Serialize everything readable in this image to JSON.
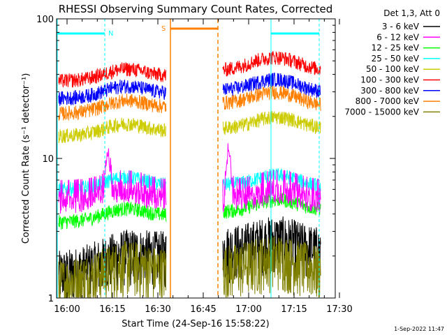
{
  "chart_data": {
    "type": "line",
    "title": "RHESSI Observing Summary Count Rates, Corrected",
    "xlabel": "Start Time (24-Sep-16 15:58:22)",
    "ylabel": "Corrected Count Rate (s⁻¹ detector⁻¹)",
    "y_scale": "log",
    "ylim": [
      1,
      100
    ],
    "xlim_minutes": [
      -1.63,
      36.4
    ],
    "x_ticks": [
      {
        "minute": 0,
        "label": "16:00"
      },
      {
        "minute": 15,
        "label": "16:15"
      },
      {
        "minute": 30,
        "label": "16:30"
      },
      {
        "minute": 45,
        "label": "16:45"
      },
      {
        "minute": 60,
        "label": "17:00"
      },
      {
        "minute": 75,
        "label": "17:15"
      },
      {
        "minute": 90,
        "label": "17:30"
      }
    ],
    "y_ticks": [
      {
        "value": 1,
        "label": "1"
      },
      {
        "value": 10,
        "label": "10"
      },
      {
        "value": 100,
        "label": "100"
      }
    ],
    "legend_header": "Det 1,3, Att 0",
    "legend_position": "right",
    "series": [
      {
        "name": "3 - 6 keV",
        "color": "#000000",
        "baseline": [
          1.5,
          1.8,
          2.2,
          2.3,
          2.2
        ],
        "peak": 2.6
      },
      {
        "name": "6 - 12 keV",
        "color": "#ff00ff",
        "baseline": [
          5.0,
          5.0,
          5.0,
          5.0,
          5.0
        ],
        "peak": 11.5
      },
      {
        "name": "12 - 25 keV",
        "color": "#00ff00",
        "baseline": [
          3.5,
          3.7,
          4.0,
          4.3,
          4.3
        ],
        "peak": 4.5
      },
      {
        "name": "25 - 50 keV",
        "color": "#00ffff",
        "baseline": [
          6.0,
          6.2,
          6.5,
          6.5,
          6.3
        ],
        "peak": 6.8
      },
      {
        "name": "50 - 100 keV",
        "color": "#cccc00",
        "baseline": [
          14.5,
          15.0,
          16.0,
          17.0,
          16.5
        ],
        "peak": 18.0
      },
      {
        "name": "100 - 300 keV",
        "color": "#ff0000",
        "baseline": [
          36.0,
          37.0,
          40.0,
          46.0,
          43.0
        ],
        "peak": 48.0
      },
      {
        "name": "300 - 800 keV",
        "color": "#0000ff",
        "baseline": [
          27.0,
          28.0,
          30.0,
          32.0,
          30.0
        ],
        "peak": 33.0
      },
      {
        "name": "800 - 7000 keV",
        "color": "#ff8000",
        "baseline": [
          21.0,
          22.0,
          24.0,
          26.0,
          24.0
        ],
        "peak": 26.0
      },
      {
        "name": "7000 - 15000 keV",
        "color": "#808000",
        "baseline": [
          1.3,
          1.5,
          1.6,
          1.7,
          1.6
        ],
        "peak": 1.8
      }
    ],
    "annotations": [
      {
        "label": "N",
        "color": "#00ffff",
        "kind": "night",
        "ranges_minutes": [
          [
            -1.63,
            14.2
          ],
          [
            75.8,
            91.5
          ]
        ]
      },
      {
        "label": "S",
        "color": "#ff8000",
        "kind": "saa",
        "ranges_minutes": [
          [
            35.3,
            51.9
          ]
        ]
      }
    ],
    "footer_date": "1-Sep-2022 11:47"
  }
}
